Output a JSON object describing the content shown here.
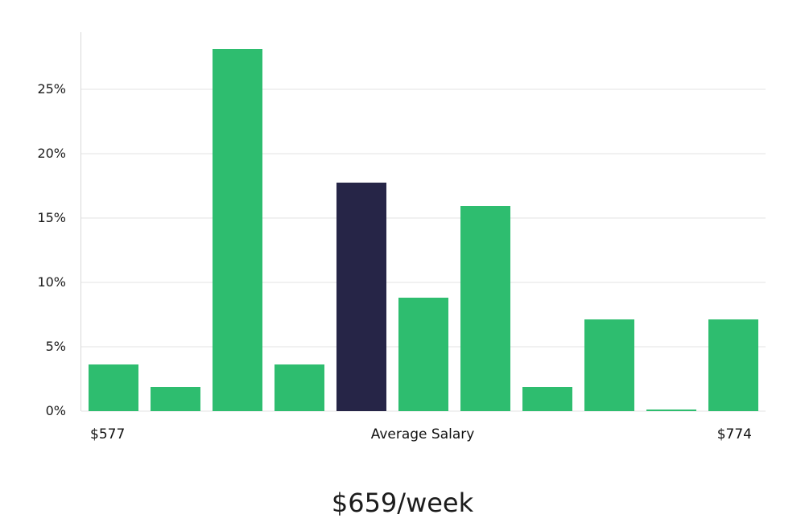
{
  "chart_data": {
    "type": "bar",
    "title": "",
    "xlabel": "",
    "ylabel": "",
    "values": [
      3.6,
      1.9,
      28.1,
      3.6,
      17.7,
      8.8,
      15.9,
      1.9,
      7.1,
      0.15,
      7.1
    ],
    "highlight_index": 4,
    "bar_color": "#2ebd6f",
    "highlight_color": "#262547",
    "ylim": [
      0,
      29.4
    ],
    "yticks": [
      0,
      5,
      10,
      15,
      20,
      25
    ],
    "ytick_suffix": "%",
    "grid": true,
    "legend": "none",
    "x_labels": {
      "min": "$577",
      "center": "Average Salary",
      "max": "$774"
    }
  },
  "caption": "$659/week"
}
